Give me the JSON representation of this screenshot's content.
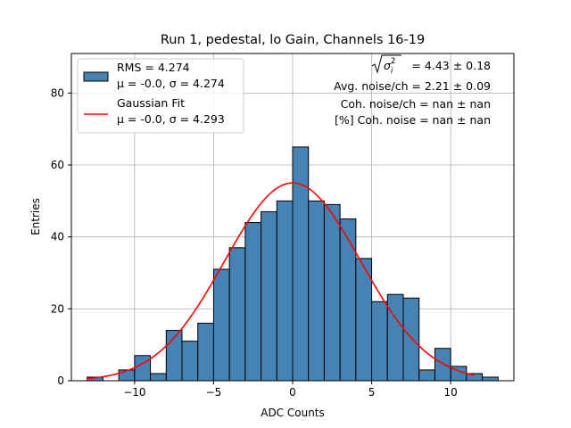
{
  "chart_data": {
    "type": "bar",
    "title": "Run 1, pedestal, lo Gain, Channels 16-19",
    "xlabel": "ADC Counts",
    "ylabel": "Entries",
    "xlim": [
      -14.0,
      14.0
    ],
    "ylim": [
      0,
      91
    ],
    "xticks": [
      -10,
      -5,
      0,
      5,
      10
    ],
    "yticks": [
      0,
      20,
      40,
      60,
      80
    ],
    "xtick_labels": [
      "−10",
      "−5",
      "0",
      "5",
      "10"
    ],
    "ytick_labels": [
      "0",
      "20",
      "40",
      "60",
      "80"
    ],
    "grid": true,
    "legend_position": "upper-left",
    "histogram": {
      "bin_start": -13.0,
      "bin_width": 1.0,
      "counts": [
        1,
        0,
        3,
        7,
        2,
        14,
        11,
        16,
        31,
        37,
        44,
        47,
        50,
        65,
        50,
        49,
        45,
        34,
        22,
        24,
        23,
        3,
        9,
        4,
        2,
        1
      ],
      "color": "#4682b4"
    },
    "gaussian_fit": {
      "mu": 0.0,
      "sigma": 4.293,
      "amplitude": 55.0,
      "x_range": [
        -13.0,
        11.5
      ],
      "color": "#ff0000"
    },
    "legend": {
      "hist_line1": "RMS = 4.274",
      "hist_line2": "μ = -0.0, σ = 4.274",
      "fit_line1": "Gaussian Fit",
      "fit_line2": "μ = -0.0, σ = 4.293"
    },
    "annotations": {
      "sqrt_value": " = 4.43 ± 0.18",
      "avg_noise": "Avg. noise/ch = 2.21 ± 0.09",
      "coh_noise": "Coh. noise/ch = nan ± nan",
      "coh_noise_pct": "[%] Coh. noise = nan ± nan"
    }
  }
}
